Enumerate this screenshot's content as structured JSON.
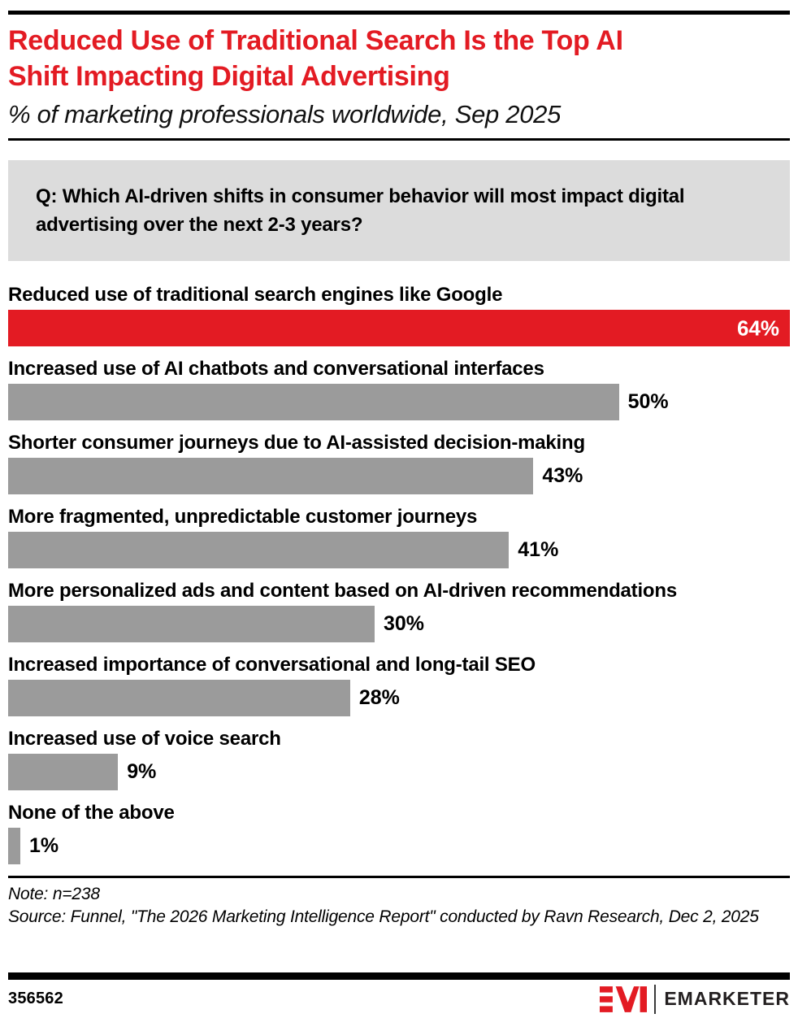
{
  "header": {
    "title_lines": [
      "Reduced Use of Traditional Search Is the Top AI",
      "Shift Impacting Digital Advertising"
    ],
    "subtitle": "% of marketing professionals worldwide, Sep 2025"
  },
  "question": "Q: Which AI-driven shifts in consumer behavior will most impact digital advertising over the next 2-3 years?",
  "chart_data": {
    "type": "bar",
    "orientation": "horizontal",
    "categories": [
      "Reduced use of traditional search engines like Google",
      "Increased use of AI chatbots and conversational interfaces",
      "Shorter consumer journeys due to AI-assisted decision-making",
      "More fragmented, unpredictable customer journeys",
      "More personalized ads and content based on AI-driven recommendations",
      "Increased importance of conversational and long-tail SEO",
      "Increased use of voice search",
      "None of the above"
    ],
    "values": [
      64,
      50,
      43,
      41,
      30,
      28,
      9,
      1
    ],
    "value_suffix": "%",
    "xlim": [
      0,
      64
    ],
    "highlight_index": 0,
    "grid": false,
    "legend": "none",
    "colors": {
      "highlight": "#e31b23",
      "default": "#9b9b9b"
    }
  },
  "notes": {
    "note": "Note: n=238",
    "source": "Source: Funnel, \"The 2026 Marketing Intelligence Report\" conducted by Ravn Research, Dec 2, 2025"
  },
  "footer": {
    "chart_id": "356562",
    "brand": "EMARKETER",
    "logo_monogram": "EM"
  },
  "colors": {
    "accent_red": "#e31b23",
    "bar_gray": "#9b9b9b",
    "question_box_bg": "#dcdcdc",
    "rule_black": "#000000"
  }
}
